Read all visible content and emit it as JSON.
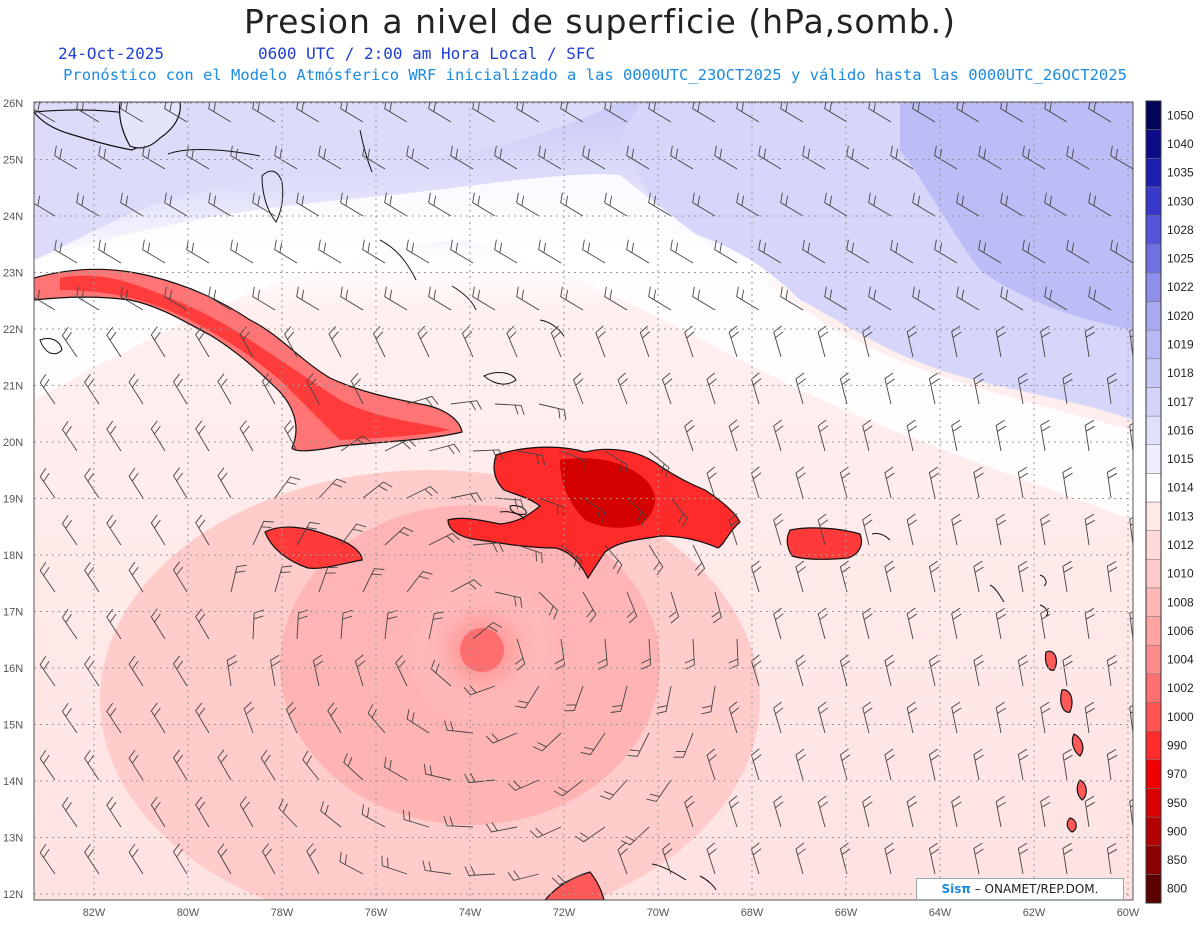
{
  "header": {
    "title": "Presion a nivel de superficie (hPa,somb.)",
    "date": "24-Oct-2025",
    "time_info": "0600 UTC / 2:00 am Hora Local / SFC",
    "model_info": "Pronóstico con el Modelo Atmósferico WRF inicializado a las 0000UTC_23OCT2025 y válido hasta las  0000UTC_26OCT2025"
  },
  "axes": {
    "lat_labels": [
      "26N",
      "25N",
      "24N",
      "23N",
      "22N",
      "21N",
      "20N",
      "19N",
      "18N",
      "17N",
      "16N",
      "15N",
      "14N",
      "13N",
      "12N"
    ],
    "lon_labels": [
      "82W",
      "80W",
      "78W",
      "76W",
      "74W",
      "72W",
      "70W",
      "68W",
      "66W",
      "64W",
      "62W",
      "60W"
    ]
  },
  "colorbar": {
    "levels": [
      "800",
      "850",
      "900",
      "950",
      "970",
      "990",
      "1000",
      "1002",
      "1004",
      "1006",
      "1008",
      "1010",
      "1012",
      "1013",
      "1014",
      "1015",
      "1016",
      "1017",
      "1018",
      "1019",
      "1020",
      "1022",
      "1025",
      "1028",
      "1030",
      "1035",
      "1040",
      "1050"
    ],
    "colors": [
      "#5c0000",
      "#8b0000",
      "#b30000",
      "#d90000",
      "#f00000",
      "#ff2a2a",
      "#ff5252",
      "#ff7070",
      "#ff8c8c",
      "#ffa3a3",
      "#ffb8b8",
      "#ffcaca",
      "#ffdada",
      "#ffe8e8",
      "#ffffff",
      "#eeeefc",
      "#e0e0fb",
      "#d3d3f9",
      "#c6c6f7",
      "#b8b8f4",
      "#a9a9f1",
      "#8f8fec",
      "#7070e5",
      "#5454dd",
      "#3838cc",
      "#1e1eb0",
      "#0c0c8a",
      "#04045c"
    ]
  },
  "credit": {
    "brand": "Sisπ",
    "text": " – ONAMET/REP.DOM."
  },
  "colors": {
    "high_pressure": "#b0b0f5",
    "low_pressure": "#ff2020",
    "grid": "#999999"
  }
}
